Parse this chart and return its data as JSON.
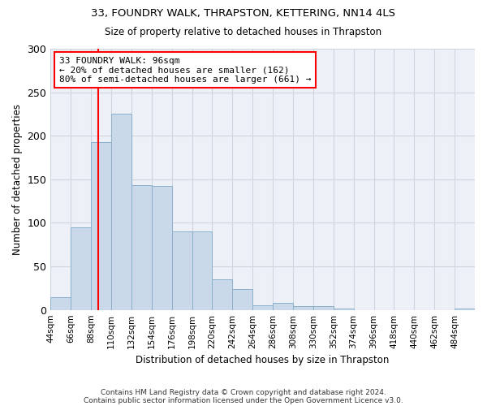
{
  "title1": "33, FOUNDRY WALK, THRAPSTON, KETTERING, NN14 4LS",
  "title2": "Size of property relative to detached houses in Thrapston",
  "xlabel": "Distribution of detached houses by size in Thrapston",
  "ylabel": "Number of detached properties",
  "bin_starts": [
    44,
    66,
    88,
    110,
    132,
    154,
    176,
    198,
    220,
    242,
    264,
    286,
    308,
    330,
    352,
    374,
    396,
    418,
    440,
    462,
    484
  ],
  "bin_labels": [
    "44sqm",
    "66sqm",
    "88sqm",
    "110sqm",
    "132sqm",
    "154sqm",
    "176sqm",
    "198sqm",
    "220sqm",
    "242sqm",
    "264sqm",
    "286sqm",
    "308sqm",
    "330sqm",
    "352sqm",
    "374sqm",
    "396sqm",
    "418sqm",
    "440sqm",
    "462sqm",
    "484sqm"
  ],
  "values": [
    15,
    95,
    193,
    225,
    143,
    142,
    90,
    90,
    35,
    24,
    5,
    8,
    4,
    4,
    2,
    0,
    0,
    0,
    0,
    0,
    2
  ],
  "bar_color": "#c9d9ea",
  "bar_edge_color": "#8ab0cc",
  "red_line_x": 96,
  "annotation_text": "33 FOUNDRY WALK: 96sqm\n← 20% of detached houses are smaller (162)\n80% of semi-detached houses are larger (661) →",
  "annotation_box_color": "white",
  "annotation_box_edge_color": "red",
  "ylim": [
    0,
    300
  ],
  "yticks": [
    0,
    50,
    100,
    150,
    200,
    250,
    300
  ],
  "footer1": "Contains HM Land Registry data © Crown copyright and database right 2024.",
  "footer2": "Contains public sector information licensed under the Open Government Licence v3.0.",
  "grid_color": "#ccd5e0",
  "background_color": "#edf1f7"
}
